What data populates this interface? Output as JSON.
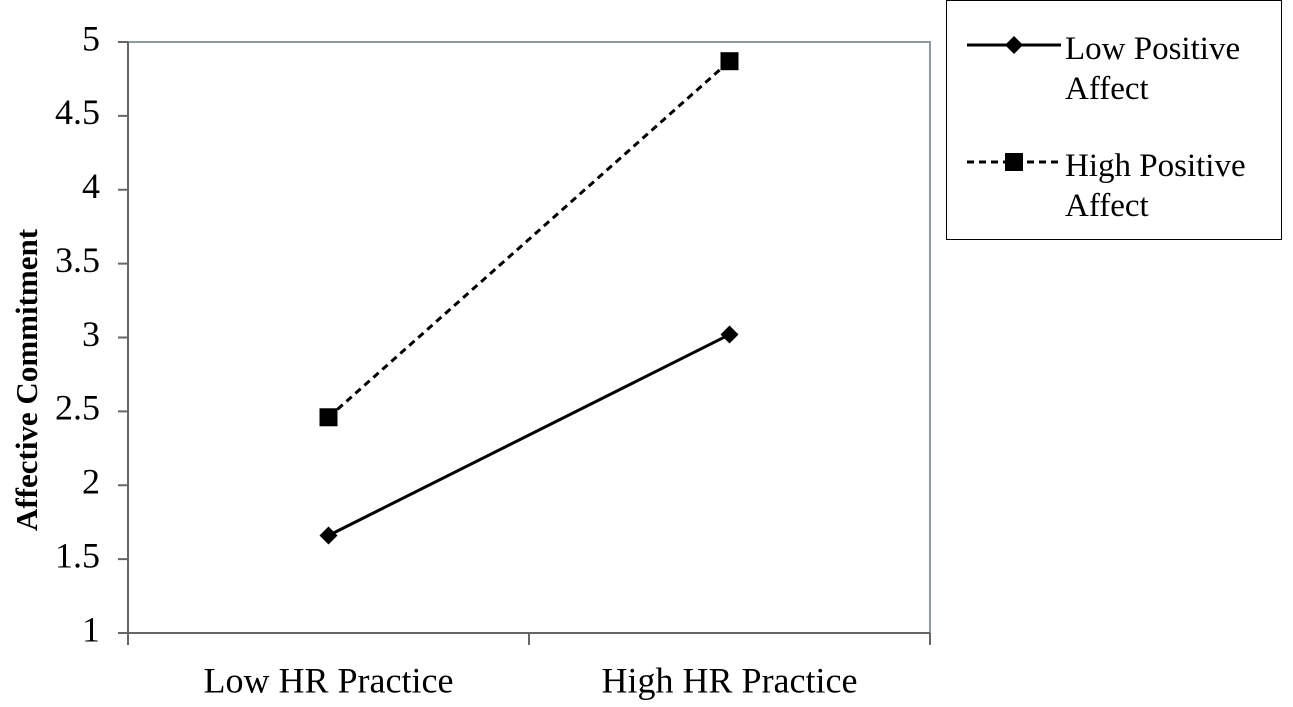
{
  "chart_data": {
    "type": "line",
    "ylabel": "Affective Commitment",
    "categories": [
      "Low HR Practice",
      "High HR Practice"
    ],
    "series": [
      {
        "name": "Low Positive Affect",
        "color": "#000000",
        "line_style": "solid",
        "marker": "diamond",
        "values": [
          1.66,
          3.02
        ]
      },
      {
        "name": "High Positive Affect",
        "color": "#000000",
        "line_style": "dashed",
        "marker": "square",
        "values": [
          2.46,
          4.87
        ]
      }
    ],
    "ylim": [
      1,
      5
    ],
    "yticks": [
      1,
      1.5,
      2,
      2.5,
      3,
      3.5,
      4,
      4.5,
      5
    ],
    "grid": false
  }
}
